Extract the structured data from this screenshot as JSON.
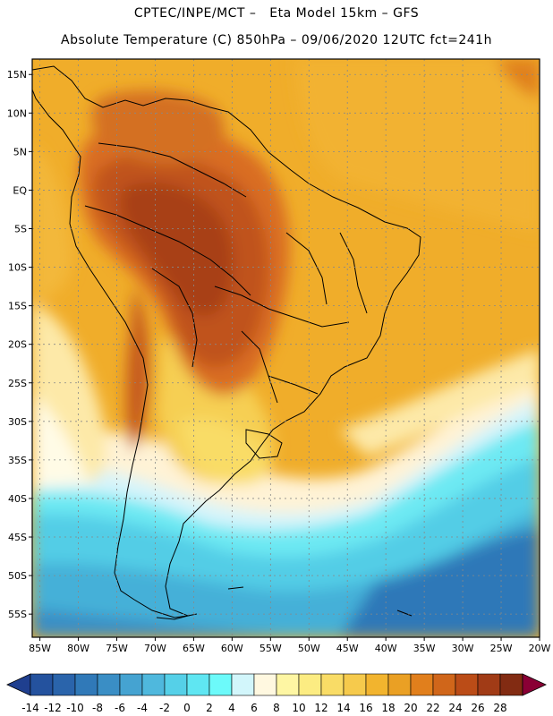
{
  "header": {
    "line1": "CPTEC/INPE/MCT –   Eta Model 15km – GFS",
    "line2": "Absolute Temperature (C) 850hPa – 09/06/2020 12UTC fct=241h"
  },
  "map": {
    "lon_range": [
      -86,
      -20
    ],
    "lat_range": [
      -58,
      17
    ],
    "lat_labels": [
      "15N",
      "10N",
      "5N",
      "EQ",
      "5S",
      "10S",
      "15S",
      "20S",
      "25S",
      "30S",
      "35S",
      "40S",
      "45S",
      "50S",
      "55S"
    ],
    "lon_labels": [
      "85W",
      "80W",
      "75W",
      "70W",
      "65W",
      "60W",
      "55W",
      "50W",
      "45W",
      "40W",
      "35W",
      "30W",
      "25W",
      "20W"
    ],
    "gridlines": "dotted"
  },
  "colorbar": {
    "labels": [
      "-14",
      "-12",
      "-10",
      "-8",
      "-6",
      "-4",
      "-2",
      "0",
      "2",
      "4",
      "6",
      "8",
      "10",
      "12",
      "14",
      "16",
      "18",
      "20",
      "22",
      "24",
      "26",
      "28"
    ],
    "colors": [
      "#1f3f8f",
      "#24529e",
      "#2a64ab",
      "#3079b8",
      "#3a8ec5",
      "#45a3d1",
      "#4fb8dd",
      "#55d0e8",
      "#5fe6f2",
      "#6cfafa",
      "#d2f6fb",
      "#fff8e0",
      "#fef6a3",
      "#fcec82",
      "#f9dc66",
      "#f6ca4c",
      "#f2b42e",
      "#eaa024",
      "#e17f1c",
      "#d0661a",
      "#bb4c17",
      "#a13b16",
      "#822b12",
      "#8a0035"
    ]
  },
  "regions": [
    {
      "name": "cold-south",
      "color": "#4fb8dd"
    },
    {
      "name": "warm-tropics",
      "color": "#f2b42e"
    },
    {
      "name": "hot-interior",
      "color": "#bb4c17"
    }
  ]
}
